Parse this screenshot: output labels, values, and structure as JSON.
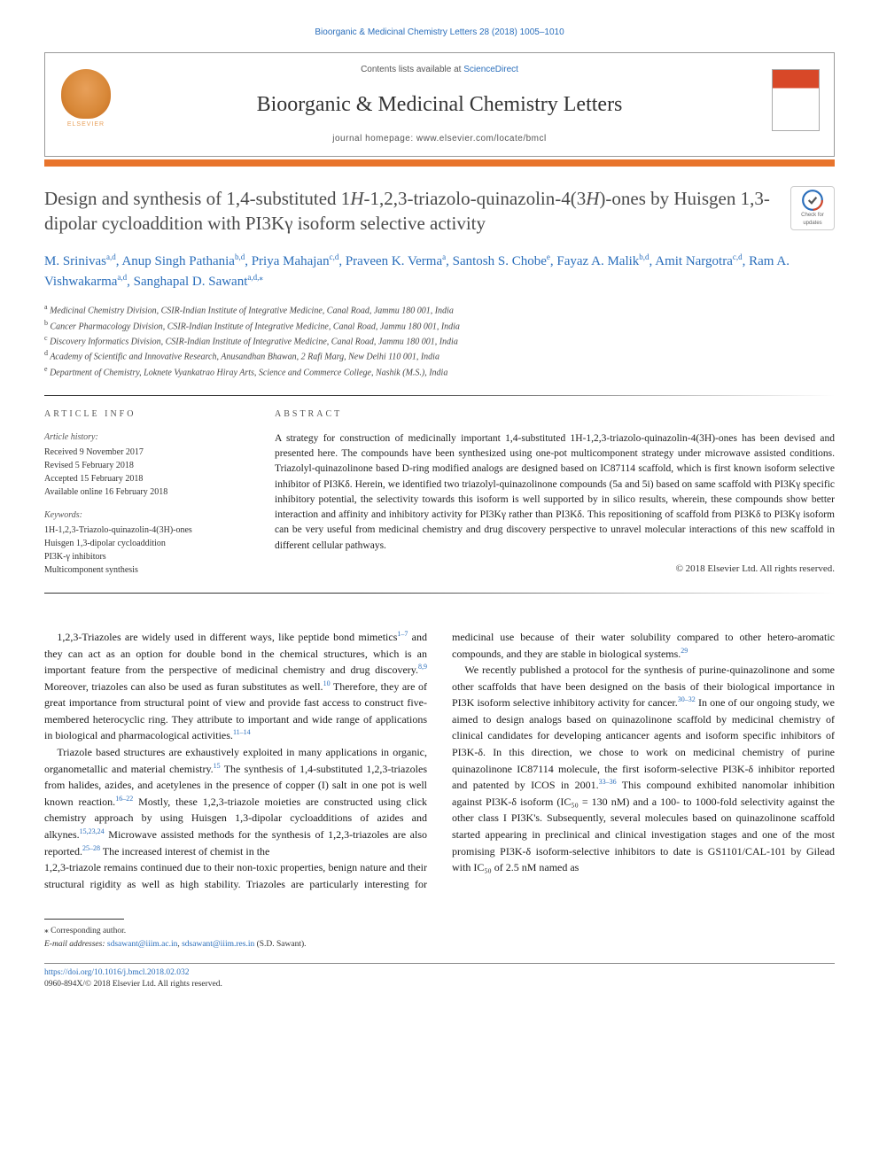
{
  "header": {
    "citation": "Bioorganic & Medicinal Chemistry Letters 28 (2018) 1005–1010",
    "contents_prefix": "Contents lists available at ",
    "contents_link": "ScienceDirect",
    "journal_name": "Bioorganic & Medicinal Chemistry Letters",
    "homepage_prefix": "journal homepage: ",
    "homepage_url": "www.elsevier.com/locate/bmcl",
    "elsevier_label": "ELSEVIER"
  },
  "article": {
    "title_pre": "Design and synthesis of 1,4-substituted 1",
    "title_italic1": "H",
    "title_mid1": "-1,2,3-triazolo-quinazolin-4(3",
    "title_italic2": "H",
    "title_mid2": ")-ones by Huisgen 1,3-dipolar cycloaddition with PI3Kγ isoform selective activity",
    "check_updates": "Check for updates"
  },
  "authors": [
    {
      "name": "M. Srinivas",
      "aff": "a,d"
    },
    {
      "name": "Anup Singh Pathania",
      "aff": "b,d"
    },
    {
      "name": "Priya Mahajan",
      "aff": "c,d"
    },
    {
      "name": "Praveen K. Verma",
      "aff": "a"
    },
    {
      "name": "Santosh S. Chobe",
      "aff": "e"
    },
    {
      "name": "Fayaz A. Malik",
      "aff": "b,d"
    },
    {
      "name": "Amit Nargotra",
      "aff": "c,d"
    },
    {
      "name": "Ram A. Vishwakarma",
      "aff": "a,d"
    },
    {
      "name": "Sanghapal D. Sawant",
      "aff": "a,d,",
      "corr": true
    }
  ],
  "affiliations": [
    {
      "key": "a",
      "text": "Medicinal Chemistry Division, CSIR-Indian Institute of Integrative Medicine, Canal Road, Jammu 180 001, India"
    },
    {
      "key": "b",
      "text": "Cancer Pharmacology Division, CSIR-Indian Institute of Integrative Medicine, Canal Road, Jammu 180 001, India"
    },
    {
      "key": "c",
      "text": "Discovery Informatics Division, CSIR-Indian Institute of Integrative Medicine, Canal Road, Jammu 180 001, India"
    },
    {
      "key": "d",
      "text": "Academy of Scientific and Innovative Research, Anusandhan Bhawan, 2 Rafi Marg, New Delhi 110 001, India"
    },
    {
      "key": "e",
      "text": "Department of Chemistry, Loknete Vyankatrao Hiray Arts, Science and Commerce College, Nashik (M.S.), India"
    }
  ],
  "article_info": {
    "heading": "ARTICLE INFO",
    "history_label": "Article history:",
    "history": [
      "Received 9 November 2017",
      "Revised 5 February 2018",
      "Accepted 15 February 2018",
      "Available online 16 February 2018"
    ],
    "keywords_label": "Keywords:",
    "keywords": [
      "1H-1,2,3-Triazolo-quinazolin-4(3H)-ones",
      "Huisgen 1,3-dipolar cycloaddition",
      "PI3K-γ inhibitors",
      "Multicomponent synthesis"
    ]
  },
  "abstract": {
    "heading": "ABSTRACT",
    "text": "A strategy for construction of medicinally important 1,4-substituted 1H-1,2,3-triazolo-quinazolin-4(3H)-ones has been devised and presented here. The compounds have been synthesized using one-pot multicomponent strategy under microwave assisted conditions. Triazolyl-quinazolinone based D-ring modified analogs are designed based on IC87114 scaffold, which is first known isoform selective inhibitor of PI3Kδ. Herein, we identified two triazolyl-quinazolinone compounds (5a and 5i) based on same scaffold with PI3Kγ specific inhibitory potential, the selectivity towards this isoform is well supported by in silico results, wherein, these compounds show better interaction and affinity and inhibitory activity for PI3Kγ rather than PI3Kδ. This repositioning of scaffold from PI3Kδ to PI3Kγ isoform can be very useful from medicinal chemistry and drug discovery perspective to unravel molecular interactions of this new scaffold in different cellular pathways.",
    "copyright": "© 2018 Elsevier Ltd. All rights reserved."
  },
  "body": {
    "p1_a": "1,2,3-Triazoles are widely used in different ways, like peptide bond mimetics",
    "p1_ref1": "1–7",
    "p1_b": " and they can act as an option for double bond in the chemical structures, which is an important feature from the perspective of medicinal chemistry and drug discovery.",
    "p1_ref2": "8,9",
    "p1_c": " Moreover, triazoles can also be used as furan substitutes as well.",
    "p1_ref3": "10",
    "p1_d": " Therefore, they are of great importance from structural point of view and provide fast access to construct five-membered heterocyclic ring. They attribute to important and wide range of applications in biological and pharmacological activities.",
    "p1_ref4": "11–14",
    "p2_a": "Triazole based structures are exhaustively exploited in many applications in organic, organometallic and material chemistry.",
    "p2_ref1": "15",
    "p2_b": " The synthesis of 1,4-substituted 1,2,3-triazoles from halides, azides, and acetylenes in the presence of copper (I) salt in one pot is well known reaction.",
    "p2_ref2": "16–22",
    "p2_c": " Mostly, these 1,2,3-triazole moieties are constructed using click chemistry approach by using Huisgen 1,3-dipolar cycloadditions of azides and alkynes.",
    "p2_ref3": "15,23,24",
    "p2_d": " Microwave assisted methods for the synthesis of 1,2,3-triazoles are also reported.",
    "p2_ref4": "25–28",
    "p2_e": " The increased interest of chemist in the ",
    "p3_a": "1,2,3-triazole remains continued due to their non-toxic properties, benign nature and their structural rigidity as well as high stability. Triazoles are particularly interesting for medicinal use because of their water solubility compared to other hetero-aromatic compounds, and they are stable in biological systems.",
    "p3_ref1": "29",
    "p4_a": "We recently published a protocol for the synthesis of purine-quinazolinone and some other scaffolds that have been designed on the basis of their biological importance in PI3K isoform selective inhibitory activity for cancer.",
    "p4_ref1": "30–32",
    "p4_b": " In one of our ongoing study, we aimed to design analogs based on quinazolinone scaffold by medicinal chemistry of clinical candidates for developing anticancer agents and isoform specific inhibitors of PI3K-δ. In this direction, we chose to work on medicinal chemistry of purine quinazolinone IC87114 molecule, the first isoform-selective PI3K-δ inhibitor reported and patented by ICOS in 2001.",
    "p4_ref2": "33–36",
    "p4_c": " This compound exhibited nanomolar inhibition against PI3K-δ isoform (IC₅₀ = 130 nM) and a 100- to 1000-fold selectivity against the other class I PI3K's. Subsequently, several molecules based on quinazolinone scaffold started appearing in preclinical and clinical investigation stages and one of the most promising PI3K-δ isoform-selective inhibitors to date is GS1101/CAL-101 by Gilead with IC₅₀ of 2.5 nM named as"
  },
  "footnotes": {
    "corr_label": "⁎ Corresponding author.",
    "email_label": "E-mail addresses:",
    "email1": "sdsawant@iiim.ac.in",
    "email2": "sdsawant@iiim.res.in",
    "email_suffix": "(S.D. Sawant)."
  },
  "footer": {
    "doi": "https://doi.org/10.1016/j.bmcl.2018.02.032",
    "issn_line": "0960-894X/© 2018 Elsevier Ltd. All rights reserved."
  },
  "colors": {
    "link": "#2a6ebb",
    "orange_bar": "#e8742c",
    "text": "#1a1a1a"
  }
}
